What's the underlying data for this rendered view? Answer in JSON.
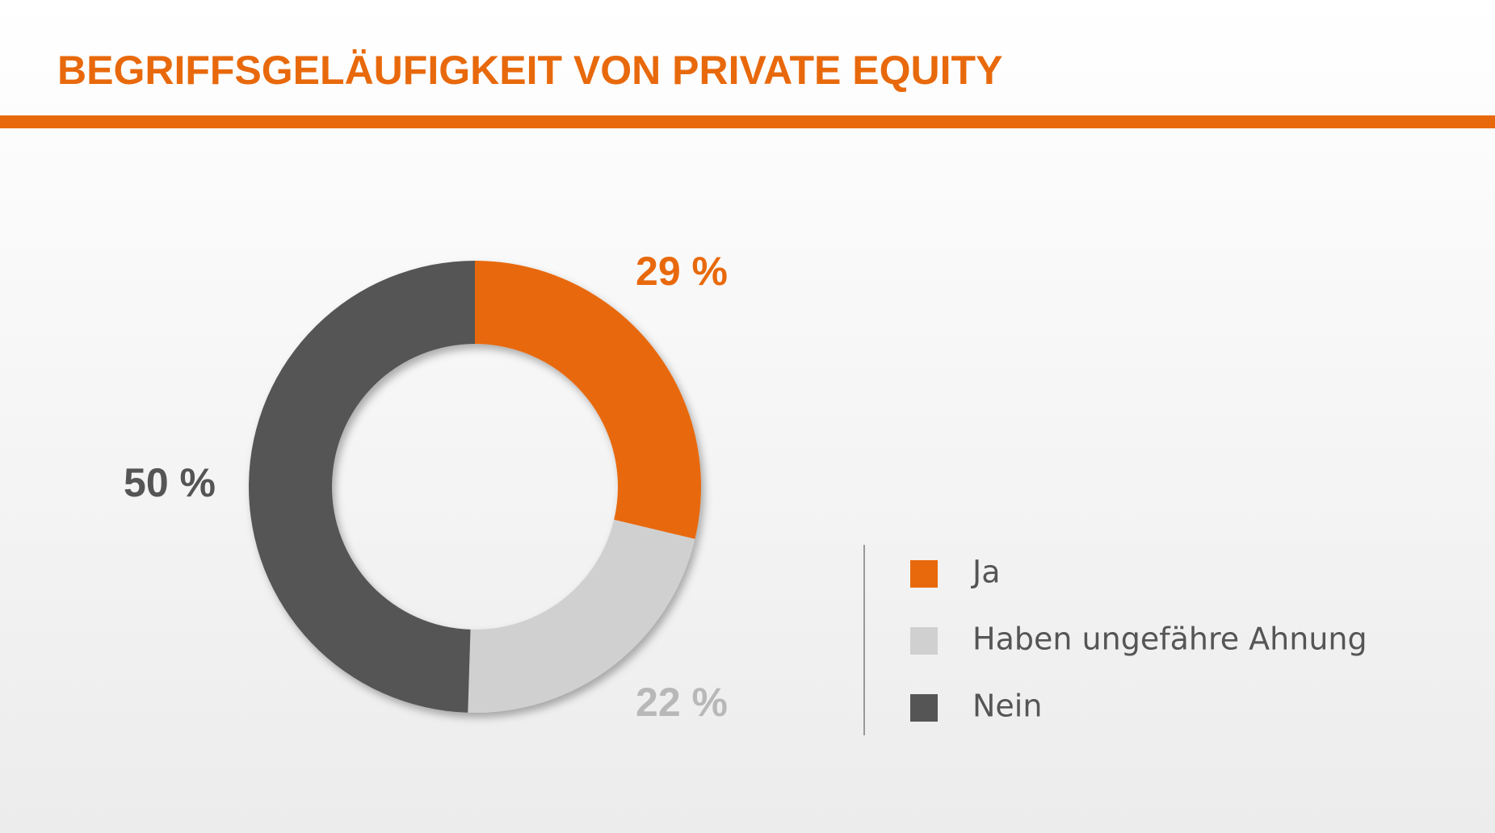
{
  "chart_data": {
    "type": "pie",
    "title": "BEGRIFFSGELÄUFIGKEIT VON PRIVATE EQUITY",
    "categories": [
      "Ja",
      "Haben ungefähre Ahnung",
      "Nein"
    ],
    "values": [
      29,
      22,
      50
    ],
    "value_labels": [
      "29 %",
      "22 %",
      "50 %"
    ],
    "colors": [
      "#e8690c",
      "#d0d0d0",
      "#555555"
    ],
    "label_colors": [
      "#e8690c",
      "#b8b8b8",
      "#555555"
    ]
  }
}
